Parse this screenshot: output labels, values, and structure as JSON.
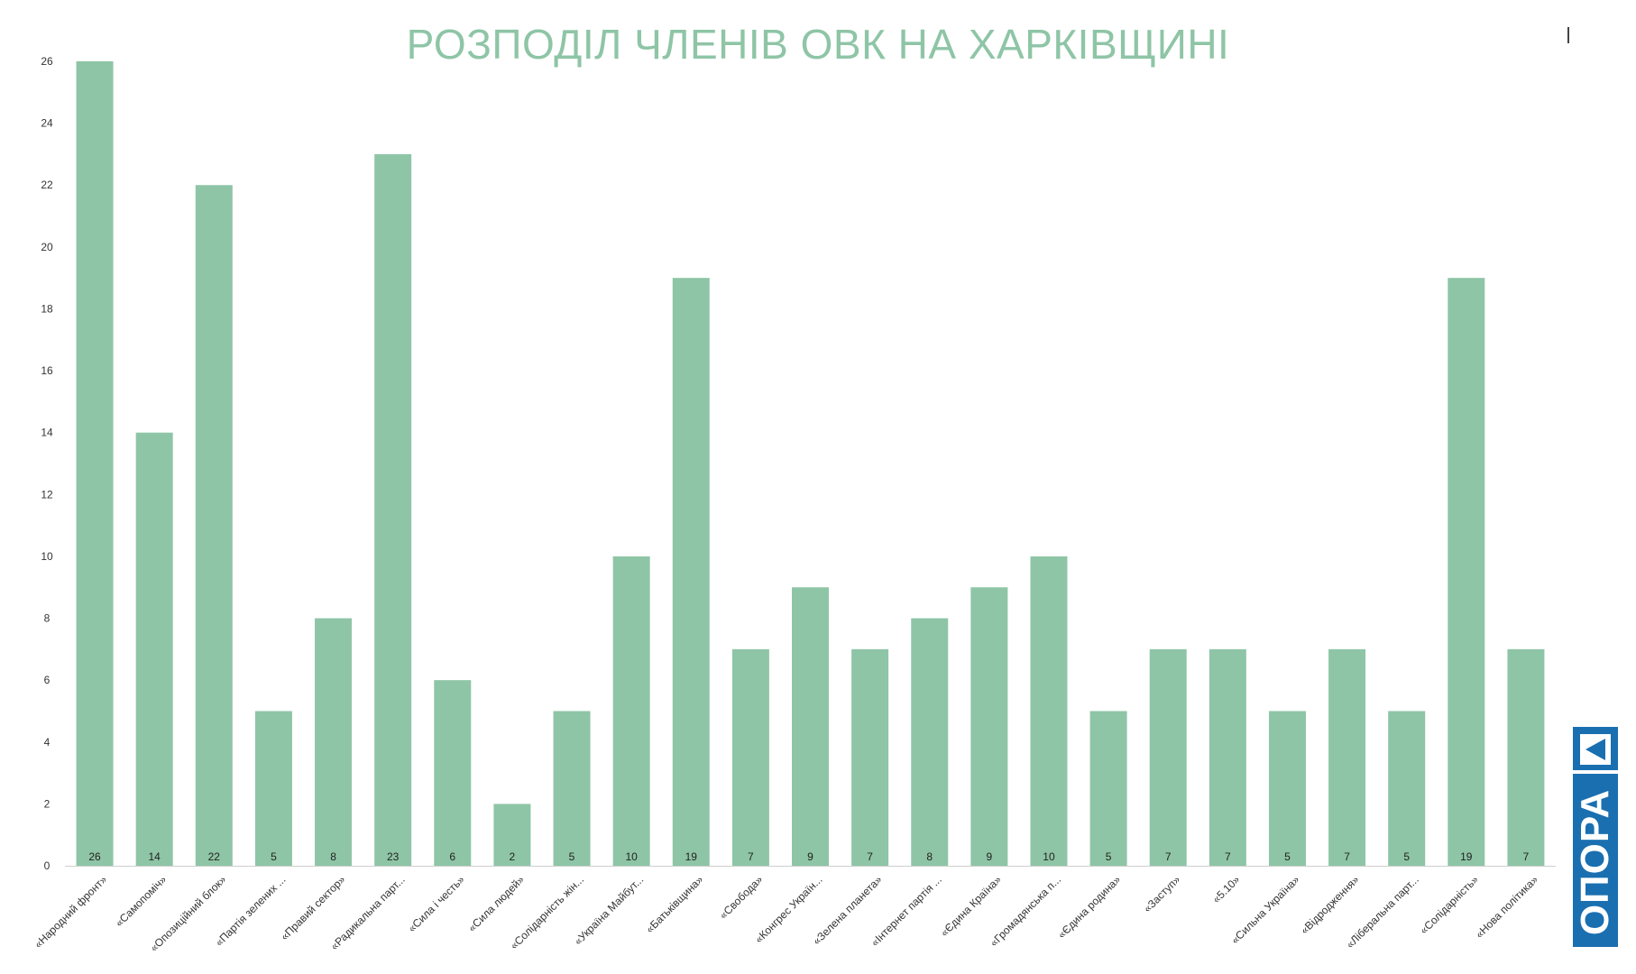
{
  "chart_data": {
    "type": "bar",
    "title": "РОЗПОДІЛ ЧЛЕНІВ ОВК НА ХАРКІВЩИНІ",
    "xlabel": "",
    "ylabel": "",
    "ylim": [
      0,
      26
    ],
    "yticks": [
      0,
      2,
      4,
      6,
      8,
      10,
      12,
      14,
      16,
      18,
      20,
      22,
      24,
      26
    ],
    "grid": false,
    "bar_color": "#8ec5a6",
    "data_labels": true,
    "categories": [
      "«Народний фронт»",
      "«Самопоміч»",
      "«Опозиційний блок»",
      "«Партія зелених ...",
      "«Правий сектор»",
      "«Радикальна парт...",
      "«Сила і честь»",
      "«Сила людей»",
      "«Солідарність жін...",
      "«Україна Майбут...",
      "«Батьківщина»",
      "«Свобода»",
      "«Конгрес Україн...",
      "«Зелена планета»",
      "«Інтернет партія ...",
      "«Єдина Країна»",
      "«Громадянська п...",
      "«Єдина родина»",
      "«Заступ»",
      "«5.10»",
      "«Сильна Україна»",
      "«Відродження»",
      "«Ліберальна парт...",
      "«Солідарність»",
      "«Нова політика»"
    ],
    "values": [
      26,
      14,
      22,
      5,
      8,
      23,
      6,
      2,
      5,
      10,
      19,
      7,
      9,
      7,
      8,
      9,
      10,
      5,
      7,
      7,
      5,
      7,
      5,
      19,
      7
    ]
  },
  "logo": {
    "text": "ОПОРА",
    "color": "#1a6fb0"
  }
}
